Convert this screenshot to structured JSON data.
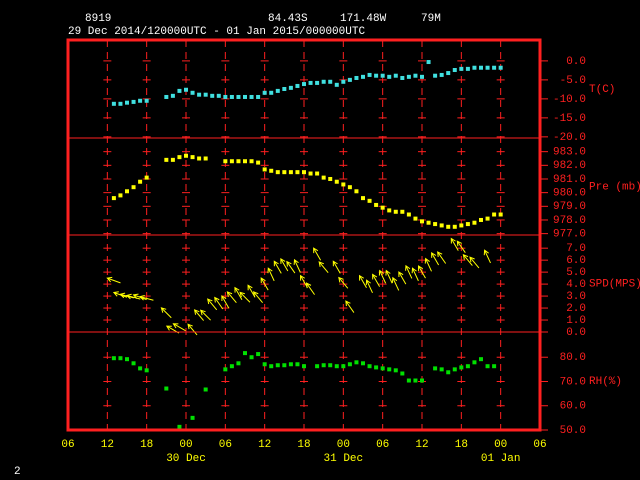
{
  "header": {
    "station": "8919",
    "latitude": "84.43S",
    "longitude": "171.48W",
    "elevation": "79M",
    "period": "29 Dec 2014/120000UTC - 01 Jan 2015/000000UTC"
  },
  "footer": "2",
  "chart_data": [
    {
      "type": "scatter",
      "ylabel": "T(C)",
      "color": "#40e0e0",
      "x": [
        7,
        8,
        9,
        10,
        11,
        12,
        13,
        14,
        15,
        16,
        17,
        18,
        19,
        20,
        21,
        22,
        23,
        24,
        25,
        26,
        27,
        28,
        29,
        30,
        31,
        32,
        33,
        34,
        35,
        36,
        37,
        38,
        39,
        40,
        41,
        42,
        43,
        44,
        45,
        46,
        47,
        48,
        49,
        50,
        51,
        52,
        53,
        54,
        55,
        56,
        57,
        58,
        59,
        60,
        61,
        62,
        63,
        64,
        65,
        66
      ],
      "values": [
        -11.3,
        -11.3,
        -11.0,
        -10.8,
        -10.5,
        -10.5,
        null,
        null,
        -9.5,
        -9.2,
        -7.9,
        -7.6,
        -8.4,
        -8.9,
        -8.9,
        -9.2,
        -9.2,
        -9.5,
        -9.5,
        -9.5,
        -9.5,
        -9.5,
        -9.5,
        -8.4,
        -8.4,
        -7.9,
        -7.4,
        -7.1,
        -6.6,
        -6.1,
        -5.8,
        -5.8,
        -5.5,
        -5.5,
        -6.3,
        -5.5,
        -5.0,
        -4.5,
        -4.2,
        -3.7,
        -3.9,
        -3.9,
        -4.2,
        -3.9,
        -4.5,
        -4.2,
        -3.9,
        -4.2,
        -0.3,
        -3.9,
        -3.7,
        -3.2,
        -2.4,
        -2.1,
        -2.1,
        -1.8,
        -1.8,
        -1.8,
        -1.8,
        -1.8
      ],
      "xlim": [
        0,
        72
      ],
      "ylim": [
        -20.3,
        5.5
      ],
      "yticks": [
        {
          "value": 0,
          "label": "0.0"
        },
        {
          "value": -5,
          "label": "-5.0"
        },
        {
          "value": -10,
          "label": "-10.0"
        },
        {
          "value": -15,
          "label": "-15.0"
        },
        {
          "value": -20,
          "label": "-20.0"
        }
      ]
    },
    {
      "type": "scatter",
      "ylabel": "Pre (mb)",
      "color": "#ffff00",
      "x": [
        7,
        8,
        9,
        10,
        11,
        12,
        13,
        14,
        15,
        16,
        17,
        18,
        19,
        20,
        21,
        22,
        23,
        24,
        25,
        26,
        27,
        28,
        29,
        30,
        31,
        32,
        33,
        34,
        35,
        36,
        37,
        38,
        39,
        40,
        41,
        42,
        43,
        44,
        45,
        46,
        47,
        48,
        49,
        50,
        51,
        52,
        53,
        54,
        55,
        56,
        57,
        58,
        59,
        60,
        61,
        62,
        63,
        64,
        65,
        66
      ],
      "values": [
        979.6,
        979.8,
        980.1,
        980.4,
        980.8,
        981.1,
        null,
        null,
        982.4,
        982.4,
        982.6,
        982.7,
        982.6,
        982.5,
        982.5,
        null,
        null,
        982.3,
        982.3,
        982.3,
        982.3,
        982.3,
        982.2,
        981.7,
        981.6,
        981.5,
        981.5,
        981.5,
        981.5,
        981.5,
        981.4,
        981.4,
        981.1,
        981.0,
        980.8,
        980.6,
        980.4,
        980.1,
        979.6,
        979.4,
        979.1,
        978.9,
        978.7,
        978.6,
        978.6,
        978.4,
        978.1,
        977.9,
        977.8,
        977.7,
        977.6,
        977.5,
        977.5,
        977.6,
        977.7,
        977.8,
        978.0,
        978.1,
        978.4,
        978.4
      ],
      "xlim": [
        0,
        72
      ],
      "ylim": [
        976.9,
        984
      ],
      "yticks": [
        {
          "value": 983,
          "label": "983.0"
        },
        {
          "value": 982,
          "label": "982.0"
        },
        {
          "value": 981,
          "label": "981.0"
        },
        {
          "value": 980,
          "label": "980.0"
        },
        {
          "value": 979,
          "label": "979.0"
        },
        {
          "value": 978,
          "label": "978.0"
        },
        {
          "value": 977,
          "label": "977.0"
        }
      ]
    },
    {
      "type": "vector",
      "ylabel": "SPD(MPS)",
      "color": "#ffff00",
      "x": [
        7,
        8,
        9,
        10,
        11,
        12,
        13,
        14,
        15,
        16,
        17,
        18,
        19,
        20,
        21,
        22,
        23,
        24,
        25,
        26,
        27,
        28,
        29,
        30,
        31,
        32,
        33,
        34,
        35,
        36,
        37,
        38,
        39,
        40,
        41,
        42,
        43,
        44,
        45,
        46,
        47,
        48,
        49,
        50,
        51,
        52,
        53,
        54,
        55,
        56,
        57,
        58,
        59,
        60,
        61,
        62,
        63,
        64,
        65,
        66
      ],
      "values": [
        4.3,
        3.1,
        3.0,
        2.9,
        2.9,
        2.8,
        null,
        null,
        1.6,
        0.2,
        0.4,
        null,
        0.2,
        1.4,
        1.4,
        2.3,
        2.4,
        2.5,
        2.9,
        3.2,
        2.9,
        3.4,
        2.9,
        4.0,
        4.8,
        5.4,
        5.6,
        5.4,
        5.5,
        4.2,
        3.6,
        6.5,
        5.4,
        null,
        5.4,
        4.1,
        2.1,
        null,
        4.2,
        3.8,
        4.3,
        4.6,
        4.6,
        4.0,
        4.5,
        5.0,
        4.8,
        5.0,
        5.6,
        6.1,
        6.2,
        null,
        7.3,
        7.1,
        6.0,
        5.8,
        null,
        6.3,
        null,
        null
      ],
      "direction": [
        290,
        290,
        285,
        285,
        290,
        285,
        null,
        null,
        315,
        300,
        300,
        null,
        320,
        320,
        315,
        320,
        325,
        330,
        320,
        330,
        315,
        330,
        320,
        330,
        335,
        330,
        330,
        325,
        335,
        330,
        325,
        330,
        320,
        null,
        330,
        320,
        325,
        null,
        330,
        335,
        330,
        335,
        335,
        335,
        330,
        335,
        335,
        330,
        335,
        330,
        325,
        null,
        330,
        325,
        320,
        320,
        null,
        335,
        null,
        null
      ],
      "xlim": [
        0,
        72
      ],
      "ylim": [
        0,
        8.1
      ],
      "yticks": [
        {
          "value": 7,
          "label": "7.0"
        },
        {
          "value": 6,
          "label": "6.0"
        },
        {
          "value": 5,
          "label": "5.0"
        },
        {
          "value": 4,
          "label": "4.0"
        },
        {
          "value": 3,
          "label": "3.0"
        },
        {
          "value": 2,
          "label": "2.0"
        },
        {
          "value": 1,
          "label": "1.0"
        },
        {
          "value": 0,
          "label": "0.0"
        }
      ]
    },
    {
      "type": "scatter",
      "ylabel": "RH(%)",
      "color": "#00e000",
      "x": [
        7,
        8,
        9,
        10,
        11,
        12,
        13,
        14,
        15,
        16,
        17,
        18,
        19,
        20,
        21,
        22,
        23,
        24,
        25,
        26,
        27,
        28,
        29,
        30,
        31,
        32,
        33,
        34,
        35,
        36,
        37,
        38,
        39,
        40,
        41,
        42,
        43,
        44,
        45,
        46,
        47,
        48,
        49,
        50,
        51,
        52,
        53,
        54,
        55,
        56,
        57,
        58,
        59,
        60,
        61,
        62,
        63,
        64,
        65,
        66
      ],
      "values": [
        79.6,
        79.6,
        79.2,
        77.5,
        75.4,
        74.6,
        null,
        null,
        67.1,
        null,
        51.3,
        null,
        55.0,
        null,
        66.7,
        null,
        null,
        75.0,
        76.3,
        77.5,
        81.7,
        80.0,
        81.3,
        77.1,
        76.3,
        76.7,
        76.7,
        77.1,
        77.1,
        76.3,
        null,
        76.3,
        76.7,
        76.7,
        76.3,
        76.3,
        77.1,
        77.9,
        77.5,
        76.3,
        75.8,
        75.4,
        75.0,
        74.6,
        73.3,
        70.4,
        70.4,
        70.4,
        null,
        75.4,
        75.0,
        73.8,
        75.0,
        75.8,
        76.3,
        77.9,
        79.2,
        76.3,
        76.3,
        null
      ],
      "xlim": [
        0,
        72
      ],
      "ylim": [
        50,
        90.4
      ],
      "yticks": [
        {
          "value": 80,
          "label": "80.0"
        },
        {
          "value": 70,
          "label": "70.0"
        },
        {
          "value": 60,
          "label": "60.0"
        },
        {
          "value": 50,
          "label": "50.0"
        }
      ],
      "xticks": [
        {
          "value": 0,
          "label": "06"
        },
        {
          "value": 6,
          "label": "12"
        },
        {
          "value": 12,
          "label": "18"
        },
        {
          "value": 18,
          "label": "00"
        },
        {
          "value": 24,
          "label": "06"
        },
        {
          "value": 30,
          "label": "12"
        },
        {
          "value": 36,
          "label": "18"
        },
        {
          "value": 42,
          "label": "00"
        },
        {
          "value": 48,
          "label": "06"
        },
        {
          "value": 54,
          "label": "12"
        },
        {
          "value": 60,
          "label": "18"
        },
        {
          "value": 66,
          "label": "00"
        },
        {
          "value": 72,
          "label": "06"
        }
      ],
      "x_date_labels": [
        {
          "value": 18,
          "label": "30 Dec"
        },
        {
          "value": 42,
          "label": "31 Dec"
        },
        {
          "value": 66,
          "label": "01 Jan"
        }
      ]
    }
  ]
}
